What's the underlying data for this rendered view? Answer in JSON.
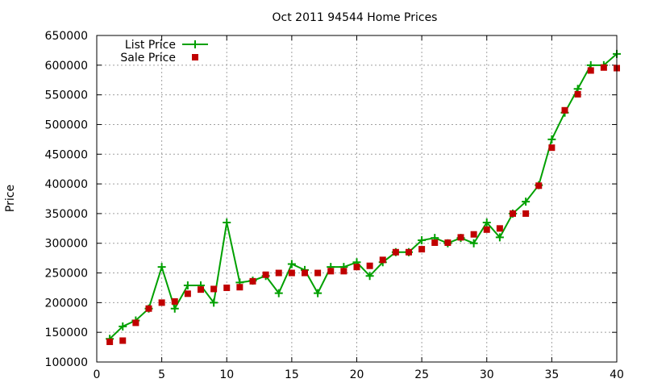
{
  "chart_data": {
    "type": "line",
    "title": "Oct 2011 94544 Home Prices",
    "xlabel": "",
    "ylabel": "Price",
    "xlim": [
      0,
      40
    ],
    "ylim": [
      100000,
      650000
    ],
    "x_ticks": [
      0,
      5,
      10,
      15,
      20,
      25,
      30,
      35,
      40
    ],
    "y_ticks": [
      100000,
      150000,
      200000,
      250000,
      300000,
      350000,
      400000,
      450000,
      500000,
      550000,
      600000,
      650000
    ],
    "grid": true,
    "legend_position": "top-left",
    "series": [
      {
        "name": "List Price",
        "style": "linespoints",
        "marker": "plus",
        "color": "#00a000",
        "x": [
          1,
          2,
          3,
          4,
          5,
          6,
          7,
          8,
          9,
          10,
          11,
          12,
          13,
          14,
          15,
          16,
          17,
          18,
          19,
          20,
          21,
          22,
          23,
          24,
          25,
          26,
          27,
          28,
          29,
          30,
          31,
          32,
          33,
          34,
          35,
          36,
          37,
          38,
          39,
          40
        ],
        "values": [
          139000,
          160000,
          170000,
          190000,
          260000,
          190000,
          229000,
          229000,
          200000,
          335000,
          234000,
          237000,
          245000,
          216000,
          265000,
          255000,
          216000,
          260000,
          260000,
          268000,
          245000,
          268000,
          285000,
          285000,
          305000,
          309000,
          300000,
          309000,
          300000,
          335000,
          310000,
          350000,
          370000,
          398000,
          475000,
          520000,
          560000,
          600000,
          600000,
          619000
        ]
      },
      {
        "name": "Sale Price",
        "style": "points",
        "marker": "square",
        "color": "#c00000",
        "x": [
          1,
          2,
          3,
          4,
          5,
          6,
          7,
          8,
          9,
          10,
          11,
          12,
          13,
          14,
          15,
          16,
          17,
          18,
          19,
          20,
          21,
          22,
          23,
          24,
          25,
          26,
          27,
          28,
          29,
          30,
          31,
          32,
          33,
          34,
          35,
          36,
          37,
          38,
          39,
          40
        ],
        "values": [
          134000,
          136000,
          166000,
          190000,
          200000,
          202000,
          215000,
          222000,
          223000,
          225000,
          226000,
          236000,
          247000,
          250000,
          250000,
          250000,
          250000,
          253000,
          253000,
          260000,
          262000,
          272000,
          285000,
          285000,
          290000,
          301000,
          301000,
          310000,
          315000,
          323000,
          325000,
          350000,
          350000,
          397000,
          461000,
          524000,
          551000,
          591000,
          596000,
          595000
        ]
      }
    ]
  }
}
